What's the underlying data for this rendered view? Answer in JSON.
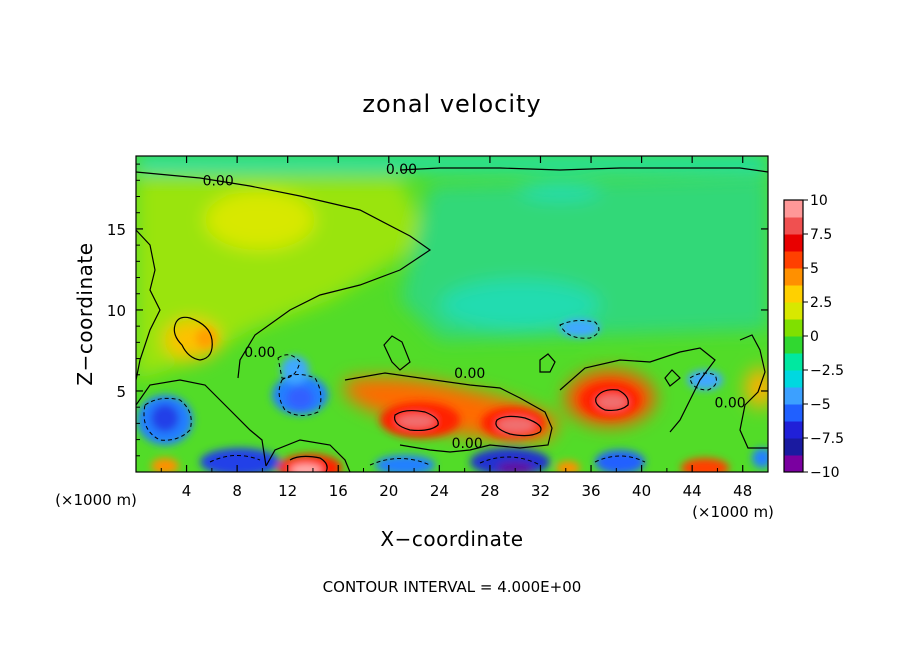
{
  "chart_data": {
    "type": "heatmap",
    "title": "zonal velocity",
    "xlabel": "X−coordinate",
    "ylabel": "Z−coordinate",
    "x_unit_left": "(×1000 m)",
    "x_unit_right": "(×1000 m)",
    "xlim": [
      0,
      50
    ],
    "ylim": [
      0,
      19.5
    ],
    "x_ticks": [
      4,
      8,
      12,
      16,
      20,
      24,
      28,
      32,
      36,
      40,
      44,
      48
    ],
    "y_ticks": [
      5,
      10,
      15
    ],
    "footer": "CONTOUR INTERVAL = 4.000E+00",
    "contour_labels": [
      {
        "text": "0.00",
        "x": 6.5,
        "z": 18.0
      },
      {
        "text": "0.00",
        "x": 21.0,
        "z": 18.7
      },
      {
        "text": "0.00",
        "x": 9.8,
        "z": 7.4
      },
      {
        "text": "0.00",
        "x": 26.4,
        "z": 6.1
      },
      {
        "text": "0.00",
        "x": 47.0,
        "z": 4.3
      },
      {
        "text": "0.00",
        "x": 26.2,
        "z": 1.8
      }
    ],
    "colorbar": {
      "min": -10,
      "max": 10,
      "tick_labels": [
        "10",
        "7.5",
        "5",
        "2.5",
        "0",
        "−2.5",
        "−5",
        "−7.5",
        "−10"
      ],
      "colors": [
        "#7a00a0",
        "#1a1aa0",
        "#2020d8",
        "#2060ff",
        "#3ca0ff",
        "#00d8e0",
        "#00e8a0",
        "#30d830",
        "#80e000",
        "#d8e800",
        "#ffd000",
        "#ff9000",
        "#ff4000",
        "#e80000",
        "#f05050",
        "#ff9898"
      ]
    },
    "features": [
      {
        "kind": "max",
        "x": 22.0,
        "z": 3.3,
        "value": 9
      },
      {
        "kind": "max",
        "x": 29.6,
        "z": 2.9,
        "value": 9
      },
      {
        "kind": "max",
        "x": 38.0,
        "z": 4.2,
        "value": 9
      },
      {
        "kind": "max",
        "x": 14.0,
        "z": 0.3,
        "value": 10
      },
      {
        "kind": "max",
        "x": 5.8,
        "z": 8.4,
        "value": 5
      },
      {
        "kind": "max",
        "x": 9.5,
        "z": 15.8,
        "value": 3
      },
      {
        "kind": "min",
        "x": 2.5,
        "z": 3.8,
        "value": -6
      },
      {
        "kind": "min",
        "x": 13.6,
        "z": 4.8,
        "value": -6
      },
      {
        "kind": "min",
        "x": 29.7,
        "z": 0.3,
        "value": -10
      },
      {
        "kind": "min",
        "x": 9.3,
        "z": 0.4,
        "value": -7
      },
      {
        "kind": "min",
        "x": 36.0,
        "z": 0.6,
        "value": -5
      },
      {
        "kind": "min",
        "x": 35.5,
        "z": 9.0,
        "value": -4
      },
      {
        "kind": "min",
        "x": 44.0,
        "z": 6.0,
        "value": -4
      },
      {
        "kind": "max",
        "x": 45.0,
        "z": 0.2,
        "value": 7
      }
    ]
  }
}
